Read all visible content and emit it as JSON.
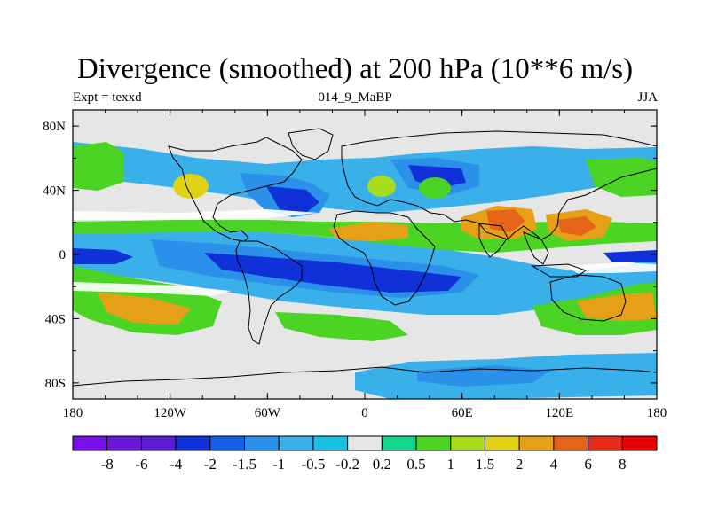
{
  "title": "Divergence (smoothed) at 200 hPa (10**6 m/s)",
  "subtitle_left": "Expt = texxd",
  "subtitle_center": "014_9_MaBP",
  "subtitle_right": "JJA",
  "chart_data": {
    "type": "heatmap",
    "projection": "cylindrical-equidistant",
    "xlim": [
      -180,
      180
    ],
    "ylim": [
      -90,
      90
    ],
    "x_ticks": [
      {
        "value": -180,
        "label": "180"
      },
      {
        "value": -120,
        "label": "120W"
      },
      {
        "value": -60,
        "label": "60W"
      },
      {
        "value": 0,
        "label": "0"
      },
      {
        "value": 60,
        "label": "60E"
      },
      {
        "value": 120,
        "label": "120E"
      },
      {
        "value": 180,
        "label": "180"
      }
    ],
    "y_ticks": [
      {
        "value": 80,
        "label": "80N"
      },
      {
        "value": 40,
        "label": "40N"
      },
      {
        "value": 0,
        "label": "0"
      },
      {
        "value": -40,
        "label": "40S"
      },
      {
        "value": -80,
        "label": "80S"
      }
    ],
    "colorbar": {
      "labels": [
        "-8",
        "-6",
        "-4",
        "-2",
        "-1.5",
        "-1",
        "-0.5",
        "-0.2",
        "0.2",
        "0.5",
        "1",
        "1.5",
        "2",
        "4",
        "6",
        "8"
      ],
      "colors": [
        "#7a10e8",
        "#6a16d8",
        "#5a1cd0",
        "#1030d8",
        "#1460e8",
        "#2a90ea",
        "#3ab0ea",
        "#1ac0e0",
        "#e6e6e6",
        "#14d68a",
        "#4cd424",
        "#a6dc1c",
        "#e2d214",
        "#e6a018",
        "#e66418",
        "#e62a18",
        "#e60000"
      ]
    },
    "field_features": [
      {
        "name": "tropical-south-convergence",
        "lon": [
          -100,
          60
        ],
        "lat": [
          -30,
          -5
        ],
        "level": "-2"
      },
      {
        "name": "west-pacific-convergence",
        "lon": [
          -180,
          -140
        ],
        "lat": [
          -8,
          2
        ],
        "level": "-2"
      },
      {
        "name": "north-atlantic-negative",
        "lon": [
          -70,
          -25
        ],
        "lat": [
          35,
          55
        ],
        "level": "-1.5"
      },
      {
        "name": "central-asia-negative",
        "lon": [
          15,
          60
        ],
        "lat": [
          45,
          60
        ],
        "level": "-1.5"
      },
      {
        "name": "south-asia-divergence",
        "lon": [
          70,
          100
        ],
        "lat": [
          12,
          30
        ],
        "level": "2"
      },
      {
        "name": "west-pacific-divergence",
        "lon": [
          115,
          155
        ],
        "lat": [
          10,
          25
        ],
        "level": "2"
      },
      {
        "name": "tropical-atlantic-divergence",
        "lon": [
          -20,
          20
        ],
        "lat": [
          5,
          15
        ],
        "level": "1.5"
      },
      {
        "name": "south-pacific-divergence",
        "lon": [
          -160,
          -115
        ],
        "lat": [
          -50,
          -30
        ],
        "level": "1.5"
      },
      {
        "name": "south-indian-divergence",
        "lon": [
          120,
          170
        ],
        "lat": [
          -45,
          -25
        ],
        "level": "1.5"
      },
      {
        "name": "southern-ocean-negative",
        "lon": [
          -5,
          175
        ],
        "lat": [
          -85,
          -65
        ],
        "level": "-0.5"
      }
    ]
  }
}
